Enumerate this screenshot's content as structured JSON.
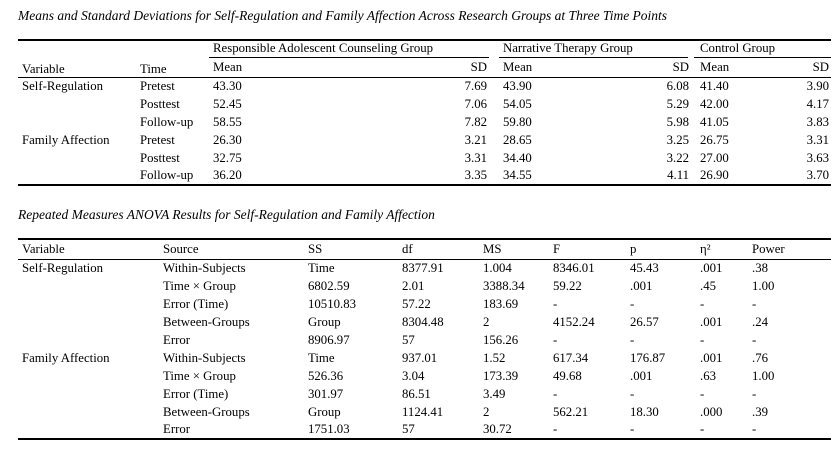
{
  "page": {
    "background": "#ffffff",
    "text_color": "#000000"
  },
  "table1": {
    "title": "Means and Standard Deviations for Self-Regulation and Family Affection Across Research Groups at Three Time Points",
    "col_headers": {
      "variable": "Variable",
      "time": "Time",
      "mean": "Mean",
      "sd": "SD"
    },
    "groups": [
      "Responsible Adolescent Counseling Group",
      "Narrative Therapy Group",
      "Control Group"
    ],
    "rows": [
      [
        "Self-Regulation",
        "Pretest",
        "43.30",
        "7.69",
        "43.90",
        "6.08",
        "41.40",
        "3.90"
      ],
      [
        "",
        "Posttest",
        "52.45",
        "7.06",
        "54.05",
        "5.29",
        "42.00",
        "4.17"
      ],
      [
        "",
        "Follow-up",
        "58.55",
        "7.82",
        "59.80",
        "5.98",
        "41.05",
        "3.83"
      ],
      [
        "Family Affection",
        "Pretest",
        "26.30",
        "3.21",
        "28.65",
        "3.25",
        "26.75",
        "3.31"
      ],
      [
        "",
        "Posttest",
        "32.75",
        "3.31",
        "34.40",
        "3.22",
        "27.00",
        "3.63"
      ],
      [
        "",
        "Follow-up",
        "36.20",
        "3.35",
        "34.55",
        "4.11",
        "26.90",
        "3.70"
      ]
    ]
  },
  "table2": {
    "title": "Repeated Measures ANOVA Results for Self-Regulation and Family Affection",
    "headers": [
      "Variable",
      "Source",
      "SS",
      "df",
      "MS",
      "F",
      "p",
      "η²",
      "Power"
    ],
    "rows": [
      [
        "Self-Regulation",
        "Within-Subjects",
        "Time",
        "8377.91",
        "1.004",
        "8346.01",
        "45.43",
        ".001",
        ".38"
      ],
      [
        "",
        "Time × Group",
        "6802.59",
        "2.01",
        "3388.34",
        "59.22",
        ".001",
        ".45",
        "1.00"
      ],
      [
        "",
        "Error (Time)",
        "10510.83",
        "57.22",
        "183.69",
        "-",
        "-",
        "-",
        "-"
      ],
      [
        "",
        "Between-Groups",
        "Group",
        "8304.48",
        "2",
        "4152.24",
        "26.57",
        ".001",
        ".24"
      ],
      [
        "",
        "Error",
        "8906.97",
        "57",
        "156.26",
        "-",
        "-",
        "-",
        "-"
      ],
      [
        "Family Affection",
        "Within-Subjects",
        "Time",
        "937.01",
        "1.52",
        "617.34",
        "176.87",
        ".001",
        ".76"
      ],
      [
        "",
        "Time × Group",
        "526.36",
        "3.04",
        "173.39",
        "49.68",
        ".001",
        ".63",
        "1.00"
      ],
      [
        "",
        "Error (Time)",
        "301.97",
        "86.51",
        "3.49",
        "-",
        "-",
        "-",
        "-"
      ],
      [
        "",
        "Between-Groups",
        "Group",
        "1124.41",
        "2",
        "562.21",
        "18.30",
        ".000",
        ".39"
      ],
      [
        "",
        "Error",
        "1751.03",
        "57",
        "30.72",
        "-",
        "-",
        "-",
        "-"
      ]
    ]
  }
}
